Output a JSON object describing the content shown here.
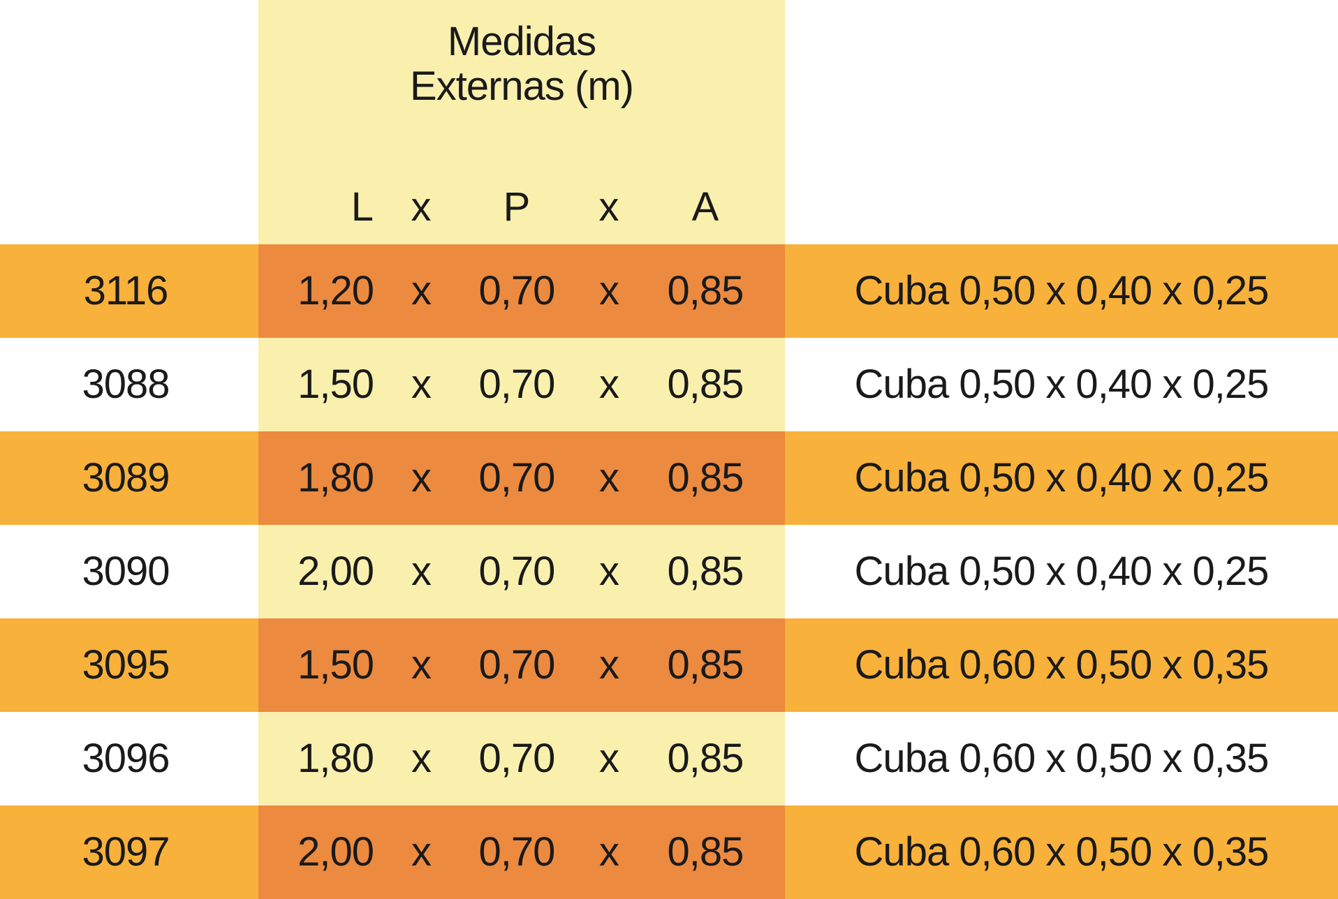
{
  "header": {
    "title_line1": "Medidas",
    "title_line2": "Externas (m)",
    "dim_l": "L",
    "dim_x1": "x",
    "dim_p": "P",
    "dim_x2": "x",
    "dim_a": "A"
  },
  "colors": {
    "column_highlight": "#f9f0ae",
    "row_band": "#f8b13a",
    "row_band_mid": "#ec8a40",
    "text": "#1a1a1a"
  },
  "rows": [
    {
      "code": "3116",
      "l": "1,20",
      "x1": "x",
      "p": "0,70",
      "x2": "x",
      "a": "0,85",
      "desc": "Cuba 0,50 x 0,40 x 0,25"
    },
    {
      "code": "3088",
      "l": "1,50",
      "x1": "x",
      "p": "0,70",
      "x2": "x",
      "a": "0,85",
      "desc": "Cuba 0,50 x 0,40 x 0,25"
    },
    {
      "code": "3089",
      "l": "1,80",
      "x1": "x",
      "p": "0,70",
      "x2": "x",
      "a": "0,85",
      "desc": "Cuba 0,50 x 0,40 x 0,25"
    },
    {
      "code": "3090",
      "l": "2,00",
      "x1": "x",
      "p": "0,70",
      "x2": "x",
      "a": "0,85",
      "desc": "Cuba 0,50 x 0,40 x 0,25"
    },
    {
      "code": "3095",
      "l": "1,50",
      "x1": "x",
      "p": "0,70",
      "x2": "x",
      "a": "0,85",
      "desc": "Cuba 0,60 x 0,50 x 0,35"
    },
    {
      "code": "3096",
      "l": "1,80",
      "x1": "x",
      "p": "0,70",
      "x2": "x",
      "a": "0,85",
      "desc": "Cuba 0,60 x 0,50 x 0,35"
    },
    {
      "code": "3097",
      "l": "2,00",
      "x1": "x",
      "p": "0,70",
      "x2": "x",
      "a": "0,85",
      "desc": "Cuba 0,60 x 0,50 x 0,35"
    }
  ]
}
